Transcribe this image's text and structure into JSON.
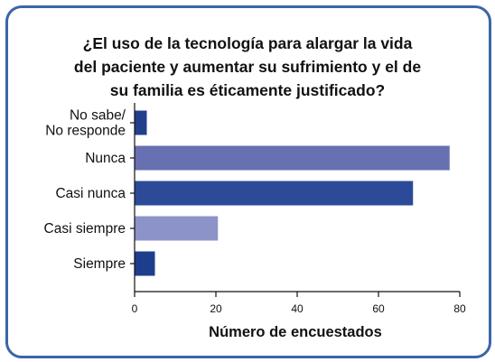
{
  "chart_data": {
    "type": "bar",
    "orientation": "horizontal",
    "title_lines": [
      "¿El uso de la tecnología para alargar la vida",
      "del paciente y aumentar su sufrimiento y el de",
      "su familia es éticamente justificado?"
    ],
    "xlabel": "Número de encuestados",
    "ylabel": "",
    "xlim": [
      0,
      80
    ],
    "x_ticks": [
      0,
      20,
      40,
      60,
      80
    ],
    "grid": false,
    "legend": "none",
    "categories": [
      {
        "lines": [
          "No sabe/",
          "No responde"
        ],
        "value": 3,
        "color": "#223f8c"
      },
      {
        "lines": [
          "Nunca"
        ],
        "value": 77.5,
        "color": "#6770b0"
      },
      {
        "lines": [
          "Casi nunca"
        ],
        "value": 68.5,
        "color": "#2c4a98"
      },
      {
        "lines": [
          "Casi siempre"
        ],
        "value": 20.5,
        "color": "#8c93c8"
      },
      {
        "lines": [
          "Siempre"
        ],
        "value": 5,
        "color": "#1d3e8c"
      }
    ]
  }
}
